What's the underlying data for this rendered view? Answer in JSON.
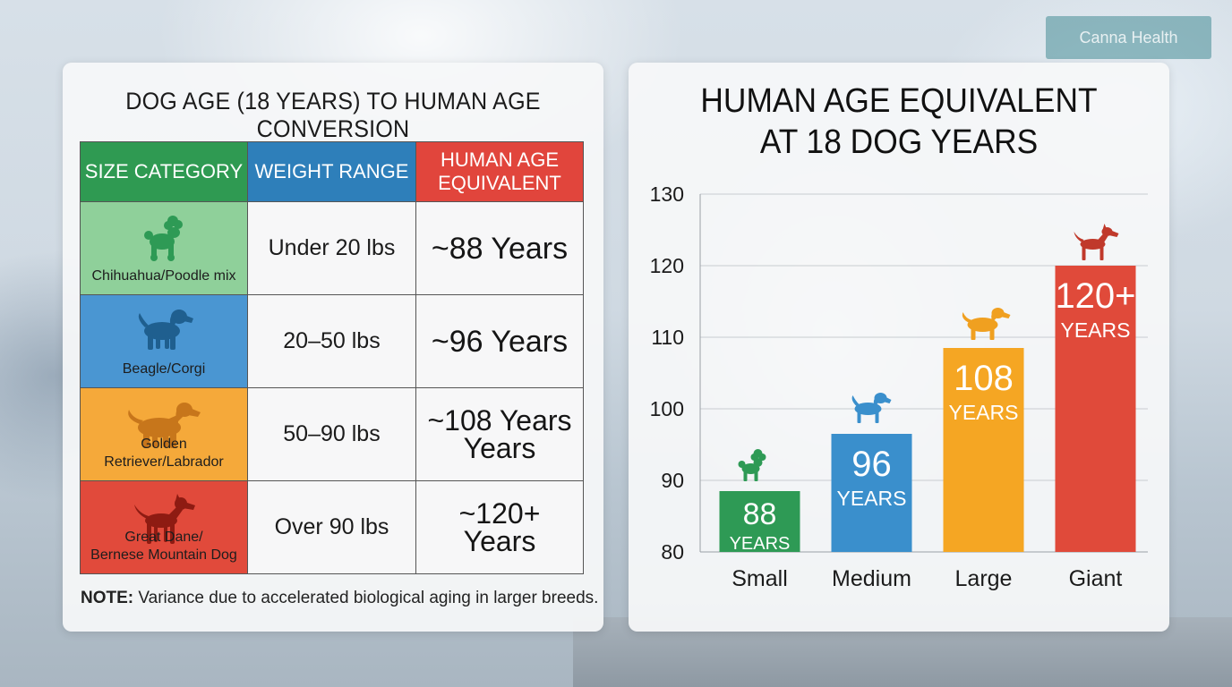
{
  "background": {
    "sign_text": "Canna Health"
  },
  "table": {
    "title": "DOG AGE (18 YEARS) TO HUMAN AGE CONVERSION",
    "headers": {
      "size": "SIZE CATEGORY",
      "weight": "WEIGHT RANGE",
      "human_line1": "HUMAN AGE",
      "human_line2": "EQUIVALENT"
    },
    "rows": [
      {
        "breed": "Chihuahua/Poodle mix",
        "weight": "Under 20 lbs",
        "human_line1": "~88 Years",
        "human_line2": "",
        "color": "#8fd09a",
        "dog_color": "#2e9a55",
        "dog_icon": "poodle-icon"
      },
      {
        "breed": "Beagle/Corgi",
        "weight": "20–50 lbs",
        "human_line1": "~96 Years",
        "human_line2": "",
        "color": "#4a96d2",
        "dog_color": "#1f5f8f",
        "dog_icon": "beagle-icon"
      },
      {
        "breed": "Golden Retriever/Labrador",
        "weight": "50–90 lbs",
        "human_line1": "~108 Years",
        "human_line2": "Years",
        "color": "#f5a93a",
        "dog_color": "#c7761b",
        "dog_icon": "retriever-icon"
      },
      {
        "breed_line1": "Great Dane/",
        "breed_line2": "Bernese Mountain Dog",
        "weight": "Over 90 lbs",
        "human_line1": "~120+",
        "human_line2": "Years",
        "color": "#e14a3b",
        "dog_color": "#8e1b12",
        "dog_icon": "great-dane-icon"
      }
    ],
    "note_label": "NOTE:",
    "note_text": " Variance due to accelerated biological aging in larger breeds."
  },
  "chart_data": {
    "type": "bar",
    "title_line1": "HUMAN AGE EQUIVALENT",
    "title_line2": "AT 18 DOG YEARS",
    "categories": [
      "Small",
      "Medium",
      "Large",
      "Giant"
    ],
    "values": [
      88.5,
      96.5,
      108.5,
      120
    ],
    "bar_labels": [
      {
        "number": "88",
        "unit": "YEARS"
      },
      {
        "number": "96",
        "unit": "YEARS"
      },
      {
        "number": "108",
        "unit": "YEARS"
      },
      {
        "number": "120+",
        "unit": "YEARS"
      }
    ],
    "colors": [
      "#2e9a55",
      "#3a8fcc",
      "#f5a623",
      "#e04a3a"
    ],
    "dog_colors": [
      "#2e9a55",
      "#3a8fcc",
      "#f0a020",
      "#c0392b"
    ],
    "dog_icons": [
      "poodle-icon",
      "beagle-icon",
      "retriever-icon",
      "great-dane-icon"
    ],
    "ylim": [
      80,
      130
    ],
    "yticks": [
      80,
      90,
      100,
      110,
      120,
      130
    ],
    "grid": true
  }
}
